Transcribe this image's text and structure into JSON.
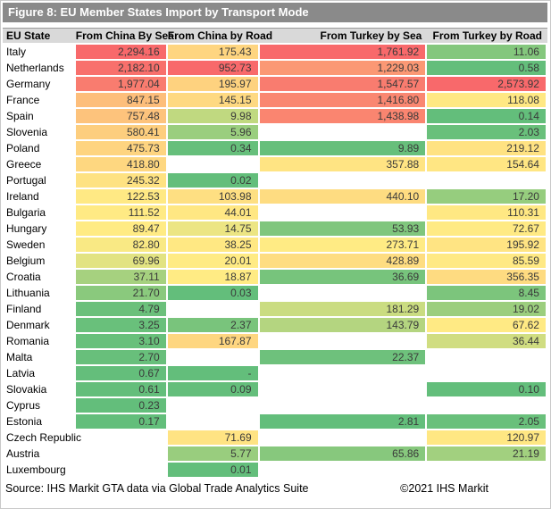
{
  "footer": {
    "source": "Source: IHS Markit GTA data via Global Trade Analytics Suite",
    "copyright": "©2021 IHS Markit"
  },
  "colors": {
    "title_bar_bg": "#8A8A8A",
    "title_text": "#FFFFFF",
    "header_bg": "#D9D9D9",
    "scale_max_red": "#F8696B",
    "scale_mid_yellow": "#FFEB84",
    "scale_min_green": "#63BE7B",
    "value_text": "#3A3A3A"
  },
  "chart_data": {
    "type": "heatmap",
    "title": "Figure 8: EU Member States Import by Transport Mode",
    "columns": [
      "EU State",
      "From China By Sea",
      "From China by Road",
      "From Turkey by Sea",
      "From Turkey by Road"
    ],
    "color_scale": "per-column 3-color scale: green=min, yellow=median, red=max; blank=no data",
    "rows": [
      {
        "state": "Italy",
        "values": [
          "2,294.16",
          "175.43",
          "1,761.92",
          "11.06"
        ]
      },
      {
        "state": "Netherlands",
        "values": [
          "2,182.10",
          "952.73",
          "1,229.03",
          "0.58"
        ]
      },
      {
        "state": "Germany",
        "values": [
          "1,977.04",
          "195.97",
          "1,547.57",
          "2,573.92"
        ]
      },
      {
        "state": "France",
        "values": [
          "847.15",
          "145.15",
          "1,416.80",
          "118.08"
        ]
      },
      {
        "state": "Spain",
        "values": [
          "757.48",
          "9.98",
          "1,438.98",
          "0.14"
        ]
      },
      {
        "state": "Slovenia",
        "values": [
          "580.41",
          "5.96",
          null,
          "2.03"
        ]
      },
      {
        "state": "Poland",
        "values": [
          "475.73",
          "0.34",
          "9.89",
          "219.12"
        ]
      },
      {
        "state": "Greece",
        "values": [
          "418.80",
          null,
          "357.88",
          "154.64"
        ]
      },
      {
        "state": "Portugal",
        "values": [
          "245.32",
          "0.02",
          null,
          null
        ]
      },
      {
        "state": "Ireland",
        "values": [
          "122.53",
          "103.98",
          "440.10",
          "17.20"
        ]
      },
      {
        "state": "Bulgaria",
        "values": [
          "111.52",
          "44.01",
          null,
          "110.31"
        ]
      },
      {
        "state": "Hungary",
        "values": [
          "89.47",
          "14.75",
          "53.93",
          "72.67"
        ]
      },
      {
        "state": "Sweden",
        "values": [
          "82.80",
          "38.25",
          "273.71",
          "195.92"
        ]
      },
      {
        "state": "Belgium",
        "values": [
          "69.96",
          "20.01",
          "428.89",
          "85.59"
        ]
      },
      {
        "state": "Croatia",
        "values": [
          "37.11",
          "18.87",
          "36.69",
          "356.35"
        ]
      },
      {
        "state": "Lithuania",
        "values": [
          "21.70",
          "0.03",
          null,
          "8.45"
        ]
      },
      {
        "state": "Finland",
        "values": [
          "4.79",
          null,
          "181.29",
          "19.02"
        ]
      },
      {
        "state": "Denmark",
        "values": [
          "3.25",
          "2.37",
          "143.79",
          "67.62"
        ]
      },
      {
        "state": "Romania",
        "values": [
          "3.10",
          "167.87",
          null,
          "36.44"
        ]
      },
      {
        "state": "Malta",
        "values": [
          "2.70",
          null,
          "22.37",
          null
        ]
      },
      {
        "state": "Latvia",
        "values": [
          "0.67",
          "-",
          null,
          null
        ]
      },
      {
        "state": "Slovakia",
        "values": [
          "0.61",
          "0.09",
          null,
          "0.10"
        ]
      },
      {
        "state": "Cyprus",
        "values": [
          "0.23",
          null,
          null,
          null
        ]
      },
      {
        "state": "Estonia",
        "values": [
          "0.17",
          null,
          "2.81",
          "2.05"
        ]
      },
      {
        "state": "Czech Republic",
        "values": [
          null,
          "71.69",
          null,
          "120.97"
        ]
      },
      {
        "state": "Austria",
        "values": [
          null,
          "5.77",
          "65.86",
          "21.19"
        ]
      },
      {
        "state": "Luxembourg",
        "values": [
          null,
          "0.01",
          null,
          null
        ]
      }
    ]
  }
}
